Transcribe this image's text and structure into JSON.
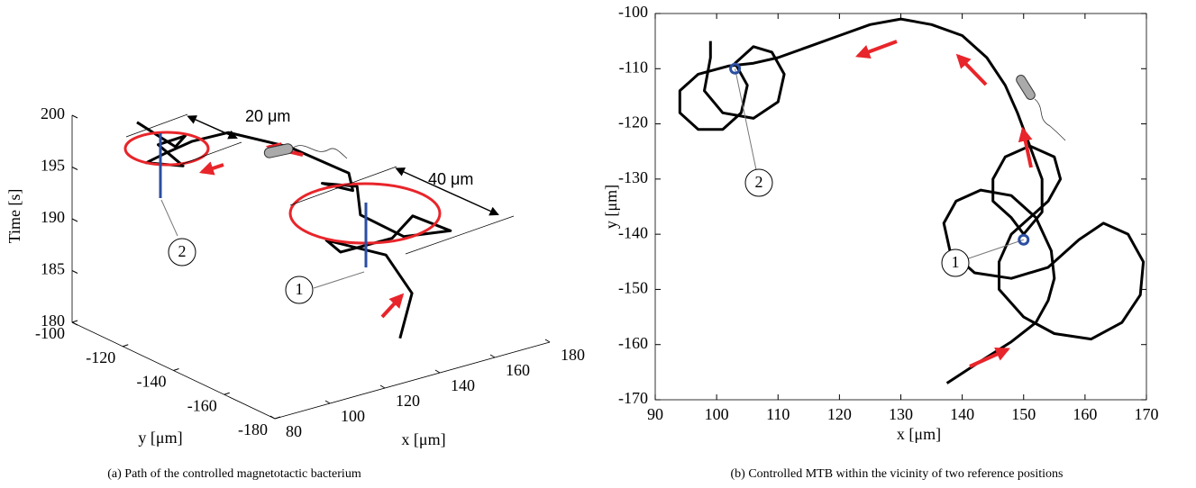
{
  "chart_data": [
    {
      "type": "line3d",
      "caption": "(a) Path of the controlled magnetotactic bacterium",
      "xlabel": "x [μm]",
      "ylabel": "y [μm]",
      "zlabel": "Time [s]",
      "x": [
        137.5,
        152,
        154.5,
        143,
        138,
        154,
        167,
        166,
        150,
        148,
        156,
        147,
        148,
        153,
        147,
        135,
        120,
        106,
        94,
        101,
        103,
        111,
        101,
        99
      ],
      "y": [
        -167,
        -156,
        -143,
        -132,
        -143,
        -146,
        -140,
        -156,
        -155,
        -140,
        -130,
        -126,
        -137,
        -130,
        -113,
        -102,
        -104,
        -109,
        -114,
        -121,
        -109,
        -111,
        -118,
        -105
      ],
      "z": [
        182,
        184,
        186,
        187,
        187.5,
        188,
        188.5,
        189,
        189.5,
        190,
        191,
        191.5,
        192,
        192.5,
        193.5,
        194.5,
        195,
        195.5,
        196,
        196,
        196.5,
        197,
        197.5,
        198.5
      ],
      "color": "#000000",
      "xlim": [
        80,
        180
      ],
      "ylim": [
        -180,
        -100
      ],
      "zlim": [
        180,
        200
      ],
      "xticks": [
        80,
        100,
        120,
        140,
        160,
        180
      ],
      "yticks": [
        -180,
        -160,
        -140,
        -120,
        -100
      ],
      "zticks": [
        180,
        185,
        190,
        195,
        200
      ],
      "annotations": [
        "20 μm",
        "40 μm",
        "1",
        "2"
      ]
    },
    {
      "type": "line",
      "caption": "(b) Controlled MTB within the vicinity of two reference positions",
      "xlabel": "x [μm]",
      "ylabel": "y [μm]",
      "x": [
        137.5,
        143,
        148,
        152,
        154,
        155,
        154.5,
        152,
        148,
        143,
        139,
        137,
        138,
        142,
        148,
        154,
        159,
        163,
        167,
        169.5,
        169,
        166,
        161,
        155,
        150,
        146,
        146,
        148,
        151,
        154,
        156,
        155,
        151,
        147,
        145,
        145,
        148,
        150,
        153,
        153,
        151,
        149,
        147,
        144,
        140,
        135,
        130,
        125,
        120,
        115,
        110,
        106,
        102,
        97,
        94,
        94,
        97,
        101,
        104,
        105,
        103,
        106,
        109,
        111,
        110,
        106,
        101,
        98,
        99,
        99
      ],
      "values": [
        -167,
        -163,
        -159.5,
        -156,
        -152,
        -148,
        -143,
        -137,
        -133,
        -132,
        -134,
        -138,
        -143,
        -147,
        -148,
        -146,
        -141,
        -138,
        -140,
        -145,
        -151,
        -156,
        -159,
        -158,
        -155,
        -150,
        -145,
        -140,
        -137,
        -134,
        -130,
        -126,
        -124,
        -126,
        -130,
        -134,
        -137,
        -140,
        -136,
        -130,
        -124,
        -118,
        -113,
        -108,
        -104,
        -102,
        -101,
        -102,
        -104,
        -106,
        -108,
        -109,
        -109.5,
        -111,
        -114,
        -118,
        -121,
        -121,
        -118,
        -113,
        -109,
        -106,
        -107,
        -111,
        -116,
        -119,
        -118,
        -114,
        -108,
        -105
      ],
      "color": "#000000",
      "xlim": [
        90,
        170
      ],
      "ylim": [
        -170,
        -100
      ],
      "xticks": [
        90,
        100,
        110,
        120,
        130,
        140,
        150,
        160,
        170
      ],
      "yticks": [
        -170,
        -160,
        -150,
        -140,
        -130,
        -120,
        -110,
        -100
      ],
      "reference_points": {
        "x": [
          150,
          103
        ],
        "y": [
          -141,
          -110
        ],
        "labels": [
          "1",
          "2"
        ],
        "color": "#2b4ea2"
      }
    }
  ]
}
